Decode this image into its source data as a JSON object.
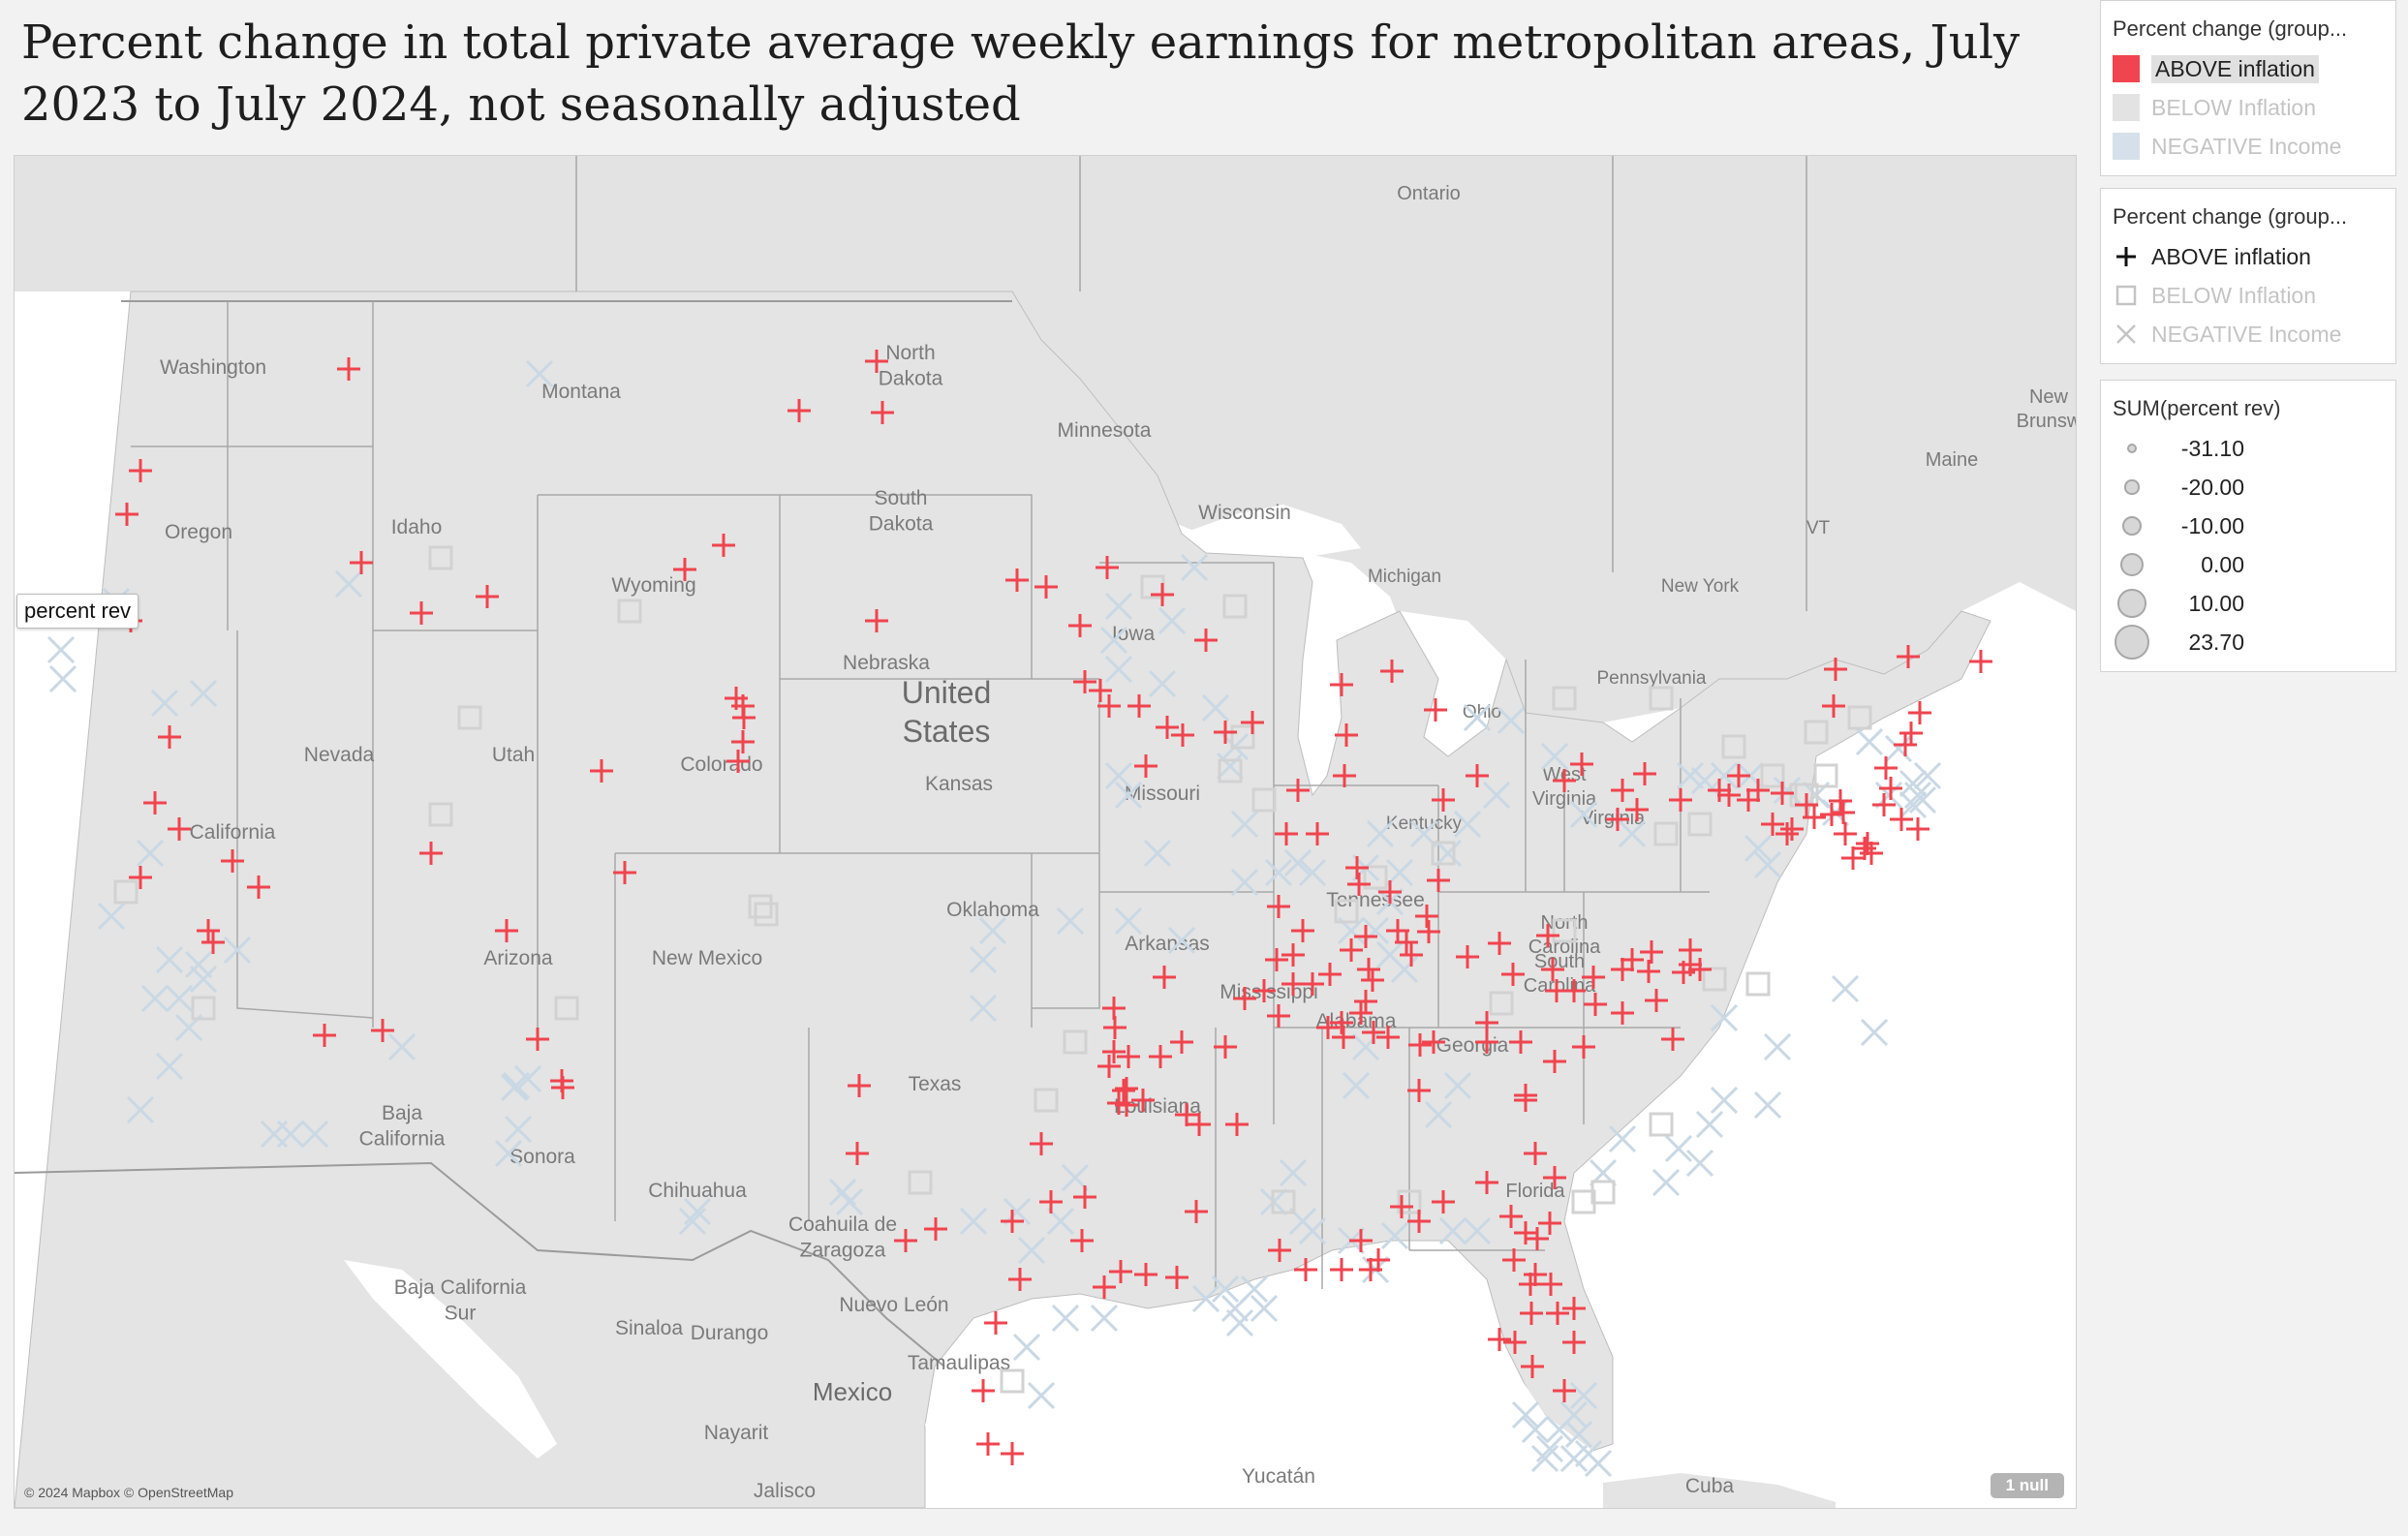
{
  "title": "Percent change in total private average weekly earnings for metropolitan areas, July 2023 to July 2024, not seasonally adjusted",
  "colors": {
    "above": "#f0444e",
    "below": "#dcdcdc",
    "negative": "#c9d8e4",
    "land": "#e4e4e4",
    "water": "#ffffff",
    "border": "#8f8f8f"
  },
  "legend_color": {
    "title": "Percent change (group...",
    "items": [
      {
        "label": "ABOVE inflation",
        "color": "#f0444e",
        "active": true
      },
      {
        "label": "BELOW Inflation",
        "color": "#e3e3e3",
        "active": false
      },
      {
        "label": "NEGATIVE Income",
        "color": "#d6e0ea",
        "active": false
      }
    ]
  },
  "legend_shape": {
    "title": "Percent change (group...",
    "items": [
      {
        "label": "ABOVE inflation",
        "shape": "plus-icon",
        "active": true
      },
      {
        "label": "BELOW Inflation",
        "shape": "square-icon",
        "active": false
      },
      {
        "label": "NEGATIVE Income",
        "shape": "x-icon",
        "active": false
      }
    ]
  },
  "legend_size": {
    "title": "SUM(percent rev)",
    "items": [
      {
        "label": "-31.10",
        "value": -31.1
      },
      {
        "label": "-20.00",
        "value": -20.0
      },
      {
        "label": "-10.00",
        "value": -10.0
      },
      {
        "label": "0.00",
        "value": 0.0
      },
      {
        "label": "10.00",
        "value": 10.0
      },
      {
        "label": "23.70",
        "value": 23.7
      }
    ]
  },
  "tooltip": "percent rev",
  "attribution": "© 2024 Mapbox © OpenStreetMap",
  "null_badge": "1 null",
  "map_labels": [
    "Ontario",
    "Washington",
    "Montana",
    "North Dakota",
    "Minnesota",
    "New Brunsw",
    "Maine",
    "Oregon",
    "Idaho",
    "South Dakota",
    "Wisconsin",
    "Wyoming",
    "Michigan",
    "New York",
    "VT",
    "Nebraska",
    "Iowa",
    "United States",
    "Pennsylvania",
    "Ohio",
    "Nevada",
    "Utah",
    "Colorado",
    "Kansas",
    "Missouri",
    "West Virginia",
    "Virginia",
    "Kentucky",
    "California",
    "Oklahoma",
    "Tennessee",
    "North Carolina",
    "Arizona",
    "New Mexico",
    "Arkansas",
    "South Carolina",
    "Mississippi",
    "Alabama",
    "Georgia",
    "Texas",
    "Louisiana",
    "Baja California",
    "Sonora",
    "Chihuahua",
    "Coahuila de Zaragoza",
    "Florida",
    "Baja California Sur",
    "Sinaloa",
    "Durango",
    "Nuevo León",
    "Tamaulipas",
    "Mexico",
    "Nayarit",
    "Jalisco",
    "Yucatán",
    "Cuba"
  ]
}
